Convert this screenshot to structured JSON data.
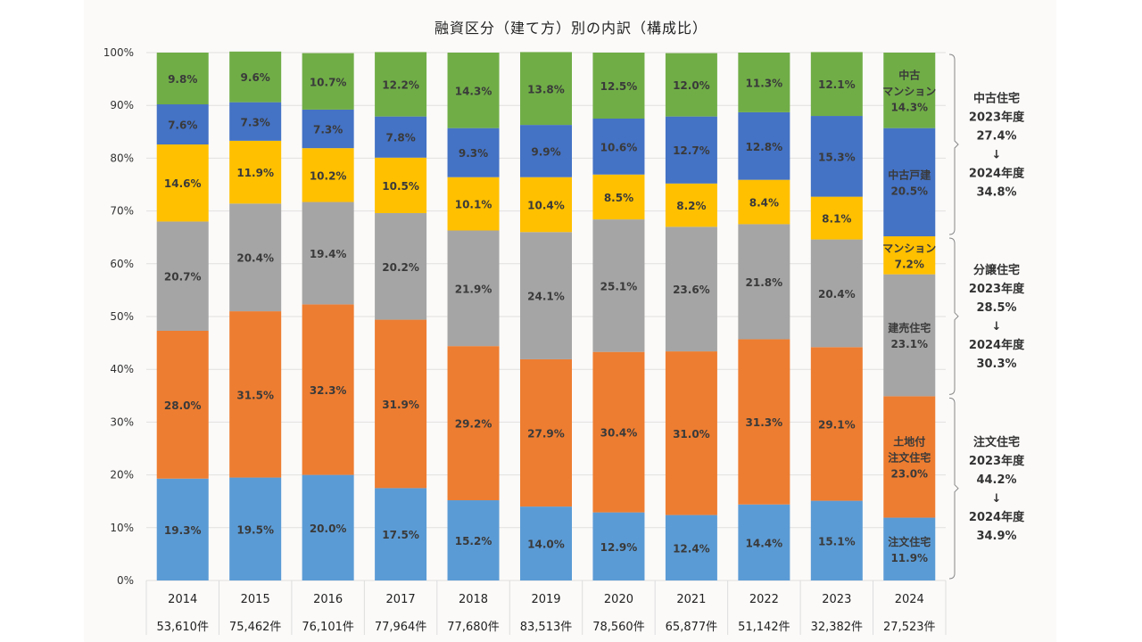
{
  "chart_data": {
    "type": "bar",
    "stacked": true,
    "title": "融資区分（建て方）別の内訳（構成比）",
    "xlabel": "",
    "ylabel": "",
    "ylim": [
      0,
      100
    ],
    "yticks": [
      "0%",
      "10%",
      "20%",
      "30%",
      "40%",
      "50%",
      "60%",
      "70%",
      "80%",
      "90%",
      "100%"
    ],
    "grid": true,
    "categories": [
      "2014",
      "2015",
      "2016",
      "2017",
      "2018",
      "2019",
      "2020",
      "2021",
      "2022",
      "2023",
      "2024"
    ],
    "counts": [
      "53,610件",
      "75,462件",
      "76,101件",
      "77,964件",
      "77,680件",
      "83,513件",
      "78,560件",
      "65,877件",
      "51,142件",
      "32,382件",
      "27,523件"
    ],
    "series": [
      {
        "name": "注文住宅",
        "color": "#5b9bd5",
        "values": [
          19.3,
          19.5,
          20.0,
          17.5,
          15.2,
          14.0,
          12.9,
          12.4,
          14.4,
          15.1,
          11.9
        ]
      },
      {
        "name": "土地付注文住宅",
        "color": "#ed7d31",
        "values": [
          28.0,
          31.5,
          32.3,
          31.9,
          29.2,
          27.9,
          30.4,
          31.0,
          31.3,
          29.1,
          23.0
        ]
      },
      {
        "name": "建売住宅",
        "color": "#a5a5a5",
        "values": [
          20.7,
          20.4,
          19.4,
          20.2,
          21.9,
          24.1,
          25.1,
          23.6,
          21.8,
          20.4,
          23.1
        ]
      },
      {
        "name": "マンション",
        "color": "#ffc000",
        "values": [
          14.6,
          11.9,
          10.2,
          10.5,
          10.1,
          10.4,
          8.5,
          8.2,
          8.4,
          8.1,
          7.2
        ]
      },
      {
        "name": "中古戸建",
        "color": "#4472c4",
        "values": [
          7.6,
          7.3,
          7.3,
          7.8,
          9.3,
          9.9,
          10.6,
          12.7,
          12.8,
          15.3,
          20.5
        ]
      },
      {
        "name": "中古マンション",
        "color": "#70ad47",
        "values": [
          9.8,
          9.6,
          10.7,
          12.2,
          14.3,
          13.8,
          12.5,
          12.0,
          11.3,
          12.1,
          14.3
        ]
      }
    ],
    "last_bar_labels": [
      [
        "注文住宅",
        "11.9%"
      ],
      [
        "土地付",
        "注文住宅",
        "23.0%"
      ],
      [
        "建売住宅",
        "23.1%"
      ],
      [
        "マンション",
        "7.2%"
      ],
      [
        "中古戸建",
        "20.5%"
      ],
      [
        "中古",
        "マンション",
        "14.3%"
      ]
    ],
    "annotations": [
      {
        "series_range": [
          4,
          5
        ],
        "lines": [
          "中古住宅",
          "2023年度",
          "27.4%",
          "↓",
          "2024年度",
          "34.8%"
        ]
      },
      {
        "series_range": [
          2,
          3
        ],
        "lines": [
          "分譲住宅",
          "2023年度",
          "28.5%",
          "↓",
          "2024年度",
          "30.3%"
        ]
      },
      {
        "series_range": [
          0,
          1
        ],
        "lines": [
          "注文住宅",
          "2023年度",
          "44.2%",
          "↓",
          "2024年度",
          "34.9%"
        ]
      }
    ]
  }
}
